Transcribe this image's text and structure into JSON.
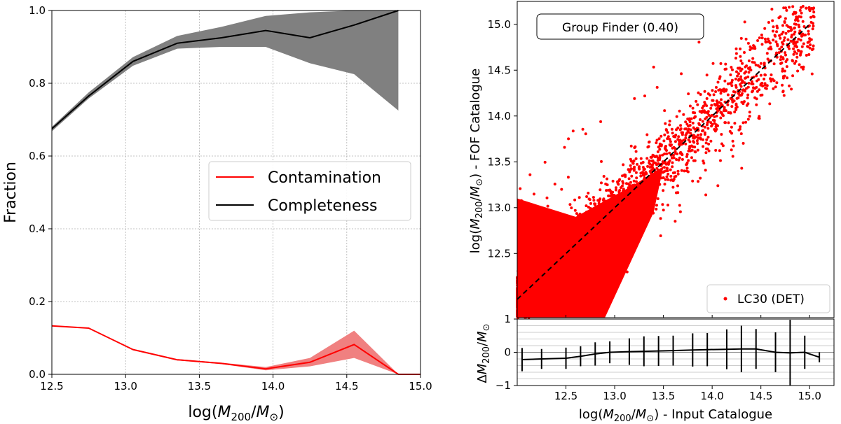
{
  "chart_data": [
    {
      "type": "line",
      "panel": "left",
      "ylabel": "Fraction",
      "xlabel": "log(M200/M⊙)",
      "xlabel_parts": {
        "prefix": "log(",
        "m": "M",
        "sub": "200",
        "slash": "/",
        "m2": "M",
        "sun": "⊙",
        "suffix": ")"
      },
      "xlim": [
        12.5,
        15.0
      ],
      "ylim": [
        0.0,
        1.0
      ],
      "xticks": [
        "12.5",
        "13.0",
        "13.5",
        "14.0",
        "14.5",
        "15.0"
      ],
      "yticks": [
        "0.0",
        "0.2",
        "0.4",
        "0.6",
        "0.8",
        "1.0"
      ],
      "grid": true,
      "legend_position": "center-right",
      "series": [
        {
          "name": "Contamination",
          "color": "#ff0000",
          "x": [
            12.5,
            12.75,
            13.05,
            13.35,
            13.65,
            13.95,
            14.25,
            14.55,
            14.85,
            15.0
          ],
          "values": [
            0.133,
            0.127,
            0.068,
            0.04,
            0.03,
            0.015,
            0.033,
            0.082,
            0.0,
            0.0
          ],
          "band_upper": [
            0.133,
            0.127,
            0.07,
            0.042,
            0.032,
            0.02,
            0.045,
            0.12,
            0.0,
            0.0
          ],
          "band_lower": [
            0.133,
            0.127,
            0.066,
            0.038,
            0.028,
            0.011,
            0.022,
            0.045,
            0.0,
            0.0
          ]
        },
        {
          "name": "Completeness",
          "color": "#000000",
          "x": [
            12.5,
            12.75,
            13.05,
            13.35,
            13.65,
            13.95,
            14.25,
            14.55,
            14.85
          ],
          "values": [
            0.675,
            0.765,
            0.86,
            0.91,
            0.925,
            0.945,
            0.925,
            0.96,
            1.0
          ],
          "band_upper": [
            0.68,
            0.775,
            0.872,
            0.93,
            0.955,
            0.985,
            0.995,
            1.0,
            1.0
          ],
          "band_lower": [
            0.668,
            0.758,
            0.848,
            0.895,
            0.9,
            0.9,
            0.855,
            0.825,
            0.725
          ]
        }
      ]
    },
    {
      "type": "scatter",
      "panel": "right-top",
      "title_box": "Group Finder (0.40)",
      "ylabel_parts": {
        "prefix": "log(",
        "m": "M",
        "sub": "200",
        "slash": "/",
        "m2": "M",
        "sun": "⊙",
        "suffix": ") - FOF Catalogue"
      },
      "xlim": [
        12.0,
        15.25
      ],
      "ylim": [
        11.8,
        15.25
      ],
      "yticks": [
        "12.5",
        "13.0",
        "13.5",
        "14.0",
        "14.5",
        "15.0"
      ],
      "legend_label": "LC30 (DET)",
      "point_color": "#ff0000",
      "one_to_one_line": [
        [
          12.0,
          12.0
        ],
        [
          15.0,
          15.0
        ]
      ]
    },
    {
      "type": "line",
      "panel": "right-bottom",
      "ylabel_parts": {
        "prefix": "Δ",
        "m": "M",
        "sub": "200",
        "slash": "/",
        "m2": "M",
        "sun": "⊙",
        "suffix": ""
      },
      "xlabel_parts": {
        "prefix": "log(",
        "m": "M",
        "sub": "200",
        "slash": "/",
        "m2": "M",
        "sun": "⊙",
        "suffix": ") - Input Catalogue"
      },
      "xlim": [
        12.0,
        15.25
      ],
      "ylim": [
        -1.0,
        1.0
      ],
      "xticks": [
        "12.5",
        "13.0",
        "13.5",
        "14.0",
        "14.5",
        "15.0"
      ],
      "yticks": [
        "−1",
        "0",
        "1"
      ],
      "x": [
        12.05,
        12.25,
        12.5,
        12.65,
        12.8,
        12.95,
        13.15,
        13.3,
        13.45,
        13.6,
        13.8,
        13.95,
        14.15,
        14.3,
        14.45,
        14.65,
        14.8,
        14.95,
        15.1
      ],
      "values": [
        -0.22,
        -0.2,
        -0.18,
        -0.12,
        -0.05,
        0.0,
        0.02,
        0.03,
        0.04,
        0.05,
        0.07,
        0.08,
        0.09,
        0.1,
        0.1,
        0.0,
        -0.02,
        0.0,
        -0.15
      ],
      "errors": [
        0.35,
        0.3,
        0.32,
        0.3,
        0.35,
        0.33,
        0.4,
        0.45,
        0.45,
        0.45,
        0.5,
        0.5,
        0.6,
        0.7,
        0.6,
        0.6,
        1.0,
        0.5,
        0.15
      ]
    }
  ]
}
